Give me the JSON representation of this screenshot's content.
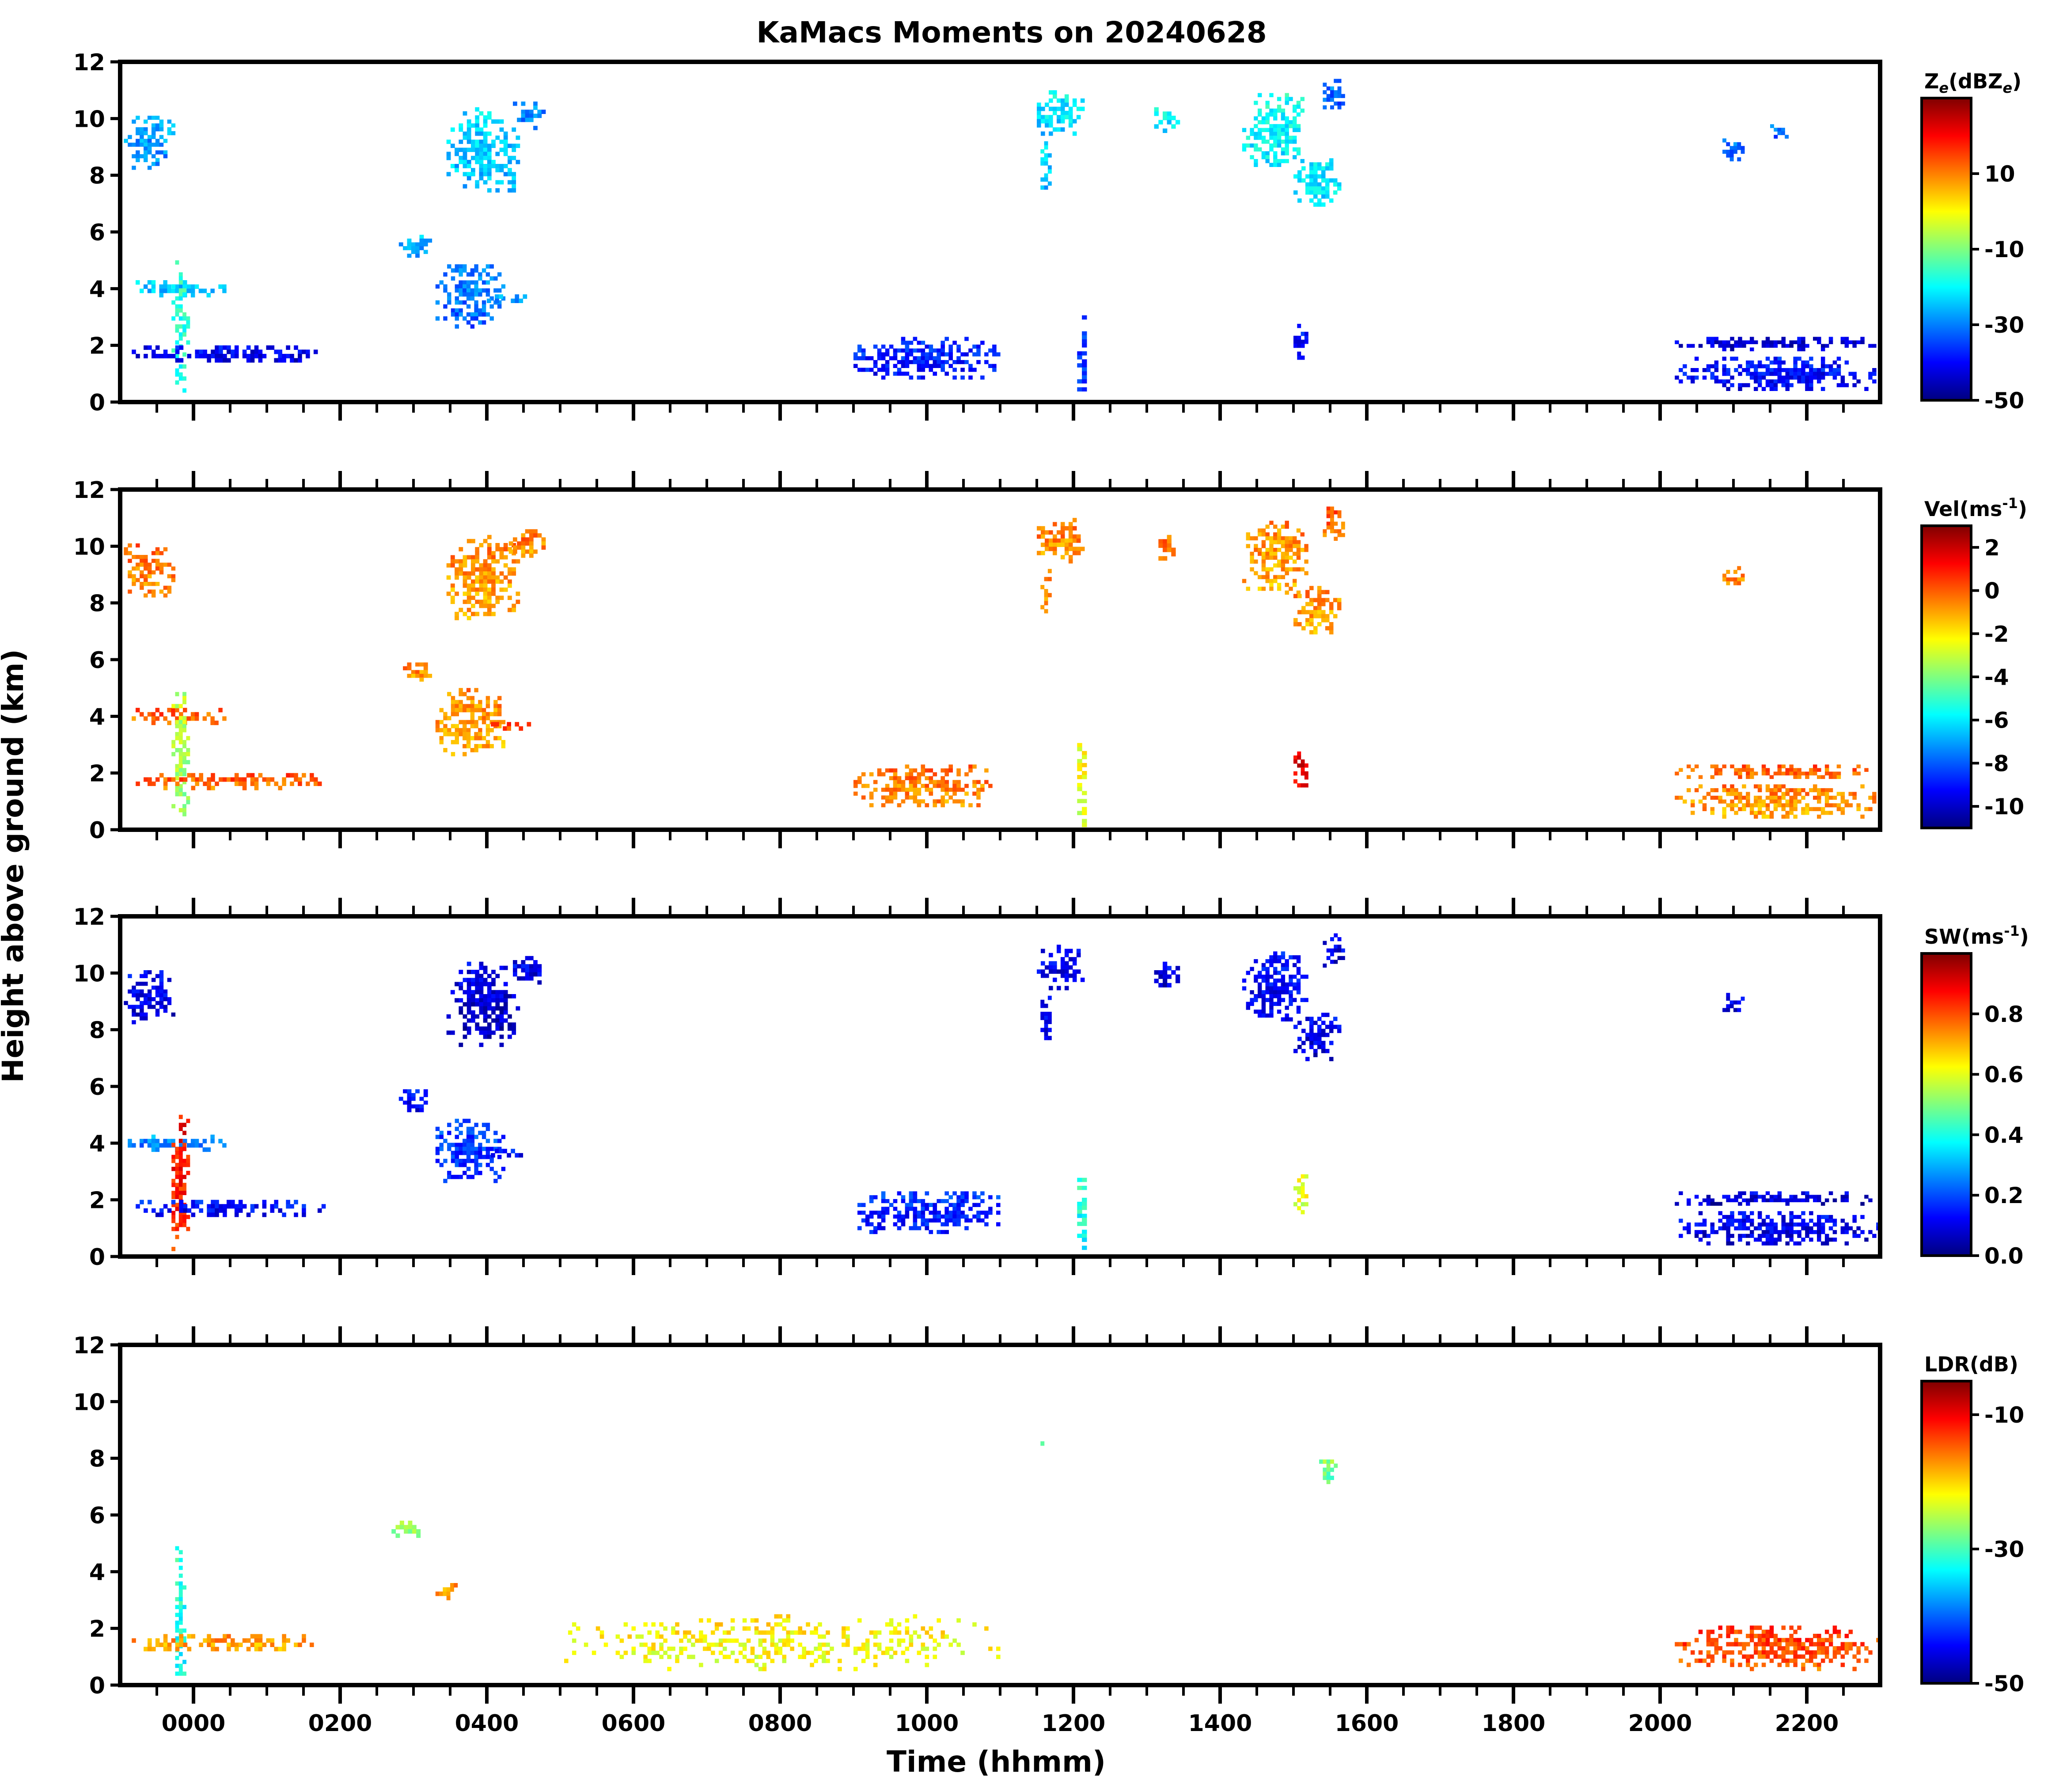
{
  "chart_data": {
    "type": "heatmap",
    "title": "KaMacs Moments on 20240628",
    "xlabel": "Time (hhmm)",
    "ylabel": "Height above ground (km)",
    "xlim": [
      -100,
      2300
    ],
    "x_ticks": [
      0,
      200,
      400,
      600,
      800,
      1000,
      1200,
      1400,
      1600,
      1800,
      2000,
      2200
    ],
    "x_tick_labels": [
      "0000",
      "0200",
      "0400",
      "0600",
      "0800",
      "1000",
      "1200",
      "1400",
      "1600",
      "1800",
      "2000",
      "2200"
    ],
    "ylim": [
      0,
      12
    ],
    "y_ticks": [
      0,
      2,
      4,
      6,
      8,
      10,
      12
    ],
    "y_tick_labels": [
      "0",
      "2",
      "4",
      "6",
      "8",
      "10",
      "12"
    ],
    "colormap": [
      "#00007f",
      "#0000ff",
      "#007fff",
      "#00ffff",
      "#7fff7f",
      "#ffff00",
      "#ff7f00",
      "#ff0000",
      "#7f0000"
    ],
    "panels": [
      {
        "field": "Ze",
        "colorbar_label": "Z_e(dBZ_e)",
        "vmin": -50,
        "vmax": 30,
        "ticks": [
          -50,
          -30,
          -10,
          10
        ],
        "tick_labels": [
          "-50",
          "-30",
          "-10",
          "10"
        ],
        "regions": [
          {
            "t0": -95,
            "t1": -25,
            "h0": 8.2,
            "h1": 10.1,
            "v": -28
          },
          {
            "t0": 345,
            "t1": 445,
            "h0": 7.4,
            "h1": 10.4,
            "v": -24
          },
          {
            "t0": 1150,
            "t1": 1215,
            "h0": 9.4,
            "h1": 11.0,
            "v": -22
          },
          {
            "t0": 1430,
            "t1": 1520,
            "h0": 8.3,
            "h1": 10.9,
            "v": -20
          },
          {
            "t0": 1500,
            "t1": 1565,
            "h0": 6.9,
            "h1": 8.6,
            "v": -22
          },
          {
            "t0": 1155,
            "t1": 1170,
            "h0": 7.5,
            "h1": 9.2,
            "v": -24
          },
          {
            "t0": 1310,
            "t1": 1345,
            "h0": 9.5,
            "h1": 10.4,
            "v": -22
          },
          {
            "t0": 1540,
            "t1": 1570,
            "h0": 10.2,
            "h1": 11.4,
            "v": -32
          },
          {
            "t0": 430,
            "t1": 480,
            "h0": 9.6,
            "h1": 10.6,
            "v": -30
          },
          {
            "t0": 2085,
            "t1": 2115,
            "h0": 8.5,
            "h1": 9.3,
            "v": -33
          },
          {
            "t0": 2150,
            "t1": 2175,
            "h0": 9.3,
            "h1": 9.8,
            "v": -32
          },
          {
            "t0": 280,
            "t1": 325,
            "h0": 5.1,
            "h1": 5.9,
            "v": -27
          },
          {
            "t0": 330,
            "t1": 425,
            "h0": 2.6,
            "h1": 5.0,
            "v": -31
          },
          {
            "t0": -95,
            "t1": 50,
            "h0": 3.7,
            "h1": 4.3,
            "v": -25
          },
          {
            "t0": -30,
            "t1": -5,
            "h0": 0.2,
            "h1": 5.0,
            "v": -18
          },
          {
            "t0": -95,
            "t1": 180,
            "h0": 1.4,
            "h1": 2.0,
            "v": -42
          },
          {
            "t0": 2020,
            "t1": 2300,
            "h0": 1.8,
            "h1": 2.3,
            "v": -44
          },
          {
            "t0": 2020,
            "t1": 2300,
            "h0": 0.4,
            "h1": 1.6,
            "v": -40
          },
          {
            "t0": 1205,
            "t1": 1218,
            "h0": 0.1,
            "h1": 3.2,
            "v": -36
          },
          {
            "t0": 1500,
            "t1": 1520,
            "h0": 1.5,
            "h1": 2.9,
            "v": -40
          },
          {
            "t0": 400,
            "t1": 460,
            "h0": 3.5,
            "h1": 3.8,
            "v": -29
          },
          {
            "t0": 900,
            "t1": 1100,
            "h0": 0.8,
            "h1": 2.3,
            "v": -38
          }
        ]
      },
      {
        "field": "Vel",
        "colorbar_label": "Vel(ms^-1)",
        "vmin": -11,
        "vmax": 3,
        "ticks": [
          -10,
          -8,
          -6,
          -4,
          -2,
          0,
          2
        ],
        "tick_labels": [
          "-10",
          "-8",
          "-6",
          "-4",
          "-2",
          "0",
          "2"
        ],
        "regions": [
          {
            "t0": -95,
            "t1": -25,
            "h0": 8.2,
            "h1": 10.1,
            "v": -0.5
          },
          {
            "t0": 345,
            "t1": 445,
            "h0": 7.4,
            "h1": 10.4,
            "v": -0.8
          },
          {
            "t0": 1150,
            "t1": 1215,
            "h0": 9.4,
            "h1": 11.0,
            "v": -0.7
          },
          {
            "t0": 1430,
            "t1": 1520,
            "h0": 8.3,
            "h1": 10.9,
            "v": -0.9
          },
          {
            "t0": 1500,
            "t1": 1565,
            "h0": 6.9,
            "h1": 8.6,
            "v": -0.9
          },
          {
            "t0": 1155,
            "t1": 1170,
            "h0": 7.5,
            "h1": 9.2,
            "v": -0.8
          },
          {
            "t0": 1310,
            "t1": 1345,
            "h0": 9.5,
            "h1": 10.4,
            "v": -0.6
          },
          {
            "t0": 1540,
            "t1": 1570,
            "h0": 10.2,
            "h1": 11.4,
            "v": -0.2
          },
          {
            "t0": 430,
            "t1": 480,
            "h0": 9.6,
            "h1": 10.6,
            "v": -0.6
          },
          {
            "t0": 2085,
            "t1": 2115,
            "h0": 8.5,
            "h1": 9.3,
            "v": -0.6
          },
          {
            "t0": 280,
            "t1": 325,
            "h0": 5.1,
            "h1": 5.9,
            "v": -0.8
          },
          {
            "t0": 330,
            "t1": 425,
            "h0": 2.6,
            "h1": 5.0,
            "v": -0.9
          },
          {
            "t0": -95,
            "t1": 50,
            "h0": 3.7,
            "h1": 4.3,
            "v": -0.2
          },
          {
            "t0": -30,
            "t1": -5,
            "h0": 0.2,
            "h1": 5.0,
            "v": -3.5
          },
          {
            "t0": -95,
            "t1": 180,
            "h0": 1.4,
            "h1": 2.0,
            "v": -0.2
          },
          {
            "t0": 2020,
            "t1": 2300,
            "h0": 1.8,
            "h1": 2.3,
            "v": -0.3
          },
          {
            "t0": 2020,
            "t1": 2300,
            "h0": 0.4,
            "h1": 1.6,
            "v": -0.8
          },
          {
            "t0": 1205,
            "t1": 1218,
            "h0": 0.1,
            "h1": 3.2,
            "v": -2.5
          },
          {
            "t0": 1500,
            "t1": 1520,
            "h0": 1.5,
            "h1": 2.9,
            "v": 1.5
          },
          {
            "t0": 400,
            "t1": 460,
            "h0": 3.5,
            "h1": 3.8,
            "v": 0.3
          },
          {
            "t0": 900,
            "t1": 1100,
            "h0": 0.8,
            "h1": 2.3,
            "v": -0.5
          }
        ]
      },
      {
        "field": "SW",
        "colorbar_label": "SW(ms^-1)",
        "vmin": 0.0,
        "vmax": 1.0,
        "ticks": [
          0.0,
          0.2,
          0.4,
          0.6,
          0.8
        ],
        "tick_labels": [
          "0.0",
          "0.2",
          "0.4",
          "0.6",
          "0.8"
        ],
        "regions": [
          {
            "t0": -95,
            "t1": -25,
            "h0": 8.2,
            "h1": 10.1,
            "v": 0.1
          },
          {
            "t0": 345,
            "t1": 445,
            "h0": 7.4,
            "h1": 10.4,
            "v": 0.08
          },
          {
            "t0": 1150,
            "t1": 1215,
            "h0": 9.4,
            "h1": 11.0,
            "v": 0.1
          },
          {
            "t0": 1430,
            "t1": 1520,
            "h0": 8.3,
            "h1": 10.9,
            "v": 0.12
          },
          {
            "t0": 1500,
            "t1": 1565,
            "h0": 6.9,
            "h1": 8.6,
            "v": 0.1
          },
          {
            "t0": 1155,
            "t1": 1170,
            "h0": 7.5,
            "h1": 9.2,
            "v": 0.1
          },
          {
            "t0": 1310,
            "t1": 1345,
            "h0": 9.5,
            "h1": 10.4,
            "v": 0.1
          },
          {
            "t0": 1540,
            "t1": 1570,
            "h0": 10.2,
            "h1": 11.4,
            "v": 0.1
          },
          {
            "t0": 430,
            "t1": 480,
            "h0": 9.6,
            "h1": 10.6,
            "v": 0.1
          },
          {
            "t0": 2085,
            "t1": 2115,
            "h0": 8.5,
            "h1": 9.3,
            "v": 0.1
          },
          {
            "t0": 280,
            "t1": 325,
            "h0": 5.1,
            "h1": 5.9,
            "v": 0.12
          },
          {
            "t0": 330,
            "t1": 425,
            "h0": 2.6,
            "h1": 5.0,
            "v": 0.18
          },
          {
            "t0": -95,
            "t1": 50,
            "h0": 3.7,
            "h1": 4.3,
            "v": 0.25
          },
          {
            "t0": -30,
            "t1": -5,
            "h0": 0.2,
            "h1": 5.0,
            "v": 0.85
          },
          {
            "t0": -95,
            "t1": 180,
            "h0": 1.4,
            "h1": 2.0,
            "v": 0.12
          },
          {
            "t0": 2020,
            "t1": 2300,
            "h0": 1.8,
            "h1": 2.3,
            "v": 0.08
          },
          {
            "t0": 2020,
            "t1": 2300,
            "h0": 0.4,
            "h1": 1.6,
            "v": 0.1
          },
          {
            "t0": 1205,
            "t1": 1218,
            "h0": 0.1,
            "h1": 3.2,
            "v": 0.4
          },
          {
            "t0": 1500,
            "t1": 1520,
            "h0": 1.5,
            "h1": 2.9,
            "v": 0.6
          },
          {
            "t0": 400,
            "t1": 460,
            "h0": 3.5,
            "h1": 3.8,
            "v": 0.12
          },
          {
            "t0": 900,
            "t1": 1100,
            "h0": 0.8,
            "h1": 2.3,
            "v": 0.15
          }
        ]
      },
      {
        "field": "LDR",
        "colorbar_label": "LDR(dB)",
        "vmin": -50,
        "vmax": -5,
        "ticks": [
          -50,
          -30,
          -10
        ],
        "tick_labels": [
          "-50",
          "-30",
          "-10"
        ],
        "regions": [
          {
            "t0": -25,
            "t1": -10,
            "h0": 0.2,
            "h1": 4.9,
            "v": -32
          },
          {
            "t0": 270,
            "t1": 315,
            "h0": 5.2,
            "h1": 5.8,
            "v": -27
          },
          {
            "t0": 330,
            "t1": 360,
            "h0": 3.0,
            "h1": 3.6,
            "v": -18
          },
          {
            "t0": 1155,
            "t1": 1165,
            "h0": 8.0,
            "h1": 8.6,
            "v": -28
          },
          {
            "t0": 1535,
            "t1": 1560,
            "h0": 7.1,
            "h1": 8.1,
            "v": -28
          },
          {
            "t0": 2020,
            "t1": 2300,
            "h0": 0.5,
            "h1": 2.1,
            "v": -14
          },
          {
            "t0": -95,
            "t1": 180,
            "h0": 1.2,
            "h1": 1.8,
            "v": -18
          },
          {
            "t0": 500,
            "t1": 1100,
            "h0": 0.5,
            "h1": 2.5,
            "v": -22
          }
        ]
      }
    ]
  }
}
